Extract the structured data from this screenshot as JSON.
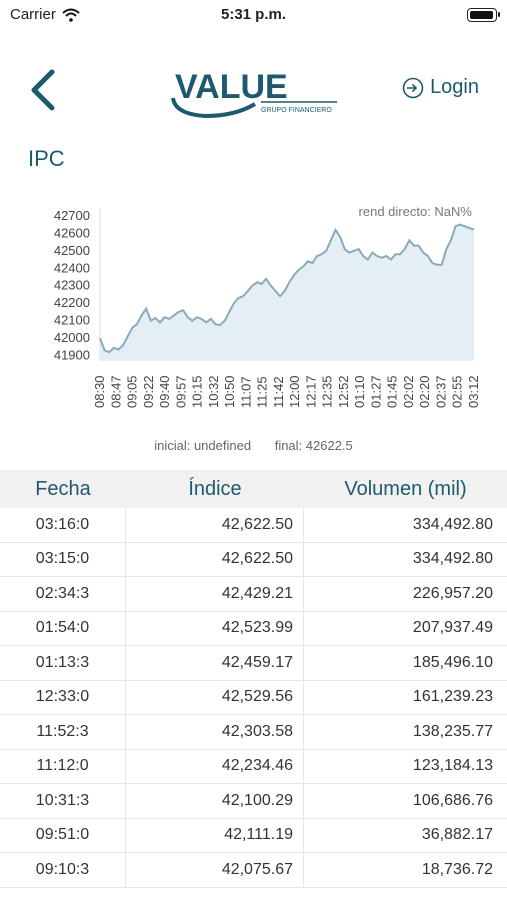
{
  "status": {
    "carrier": "Carrier",
    "time": "5:31 p.m.",
    "battery_level": 1.0
  },
  "nav": {
    "logo_text": "VALUE",
    "logo_subtext": "GRUPO FINANCIERO",
    "login_label": "Login"
  },
  "page_title": "IPC",
  "chart_data": {
    "type": "area",
    "annotation": "rend directo: NaN%",
    "x_ticks": [
      "08:30",
      "08:47",
      "09:05",
      "09:22",
      "09:40",
      "09:57",
      "10:15",
      "10:32",
      "10:50",
      "11:07",
      "11:25",
      "11:42",
      "12:00",
      "12:17",
      "12:35",
      "12:52",
      "01:10",
      "01:27",
      "01:45",
      "02:02",
      "02:20",
      "02:37",
      "02:55",
      "03:12"
    ],
    "y_ticks": [
      41900,
      42000,
      42100,
      42200,
      42300,
      42400,
      42500,
      42600,
      42700
    ],
    "ylim": [
      41875,
      42745
    ],
    "series": [
      {
        "values": [
          42000,
          41930,
          41920,
          41945,
          41935,
          41960,
          42010,
          42060,
          42080,
          42130,
          42170,
          42100,
          42115,
          42090,
          42120,
          42110,
          42130,
          42150,
          42160,
          42120,
          42100,
          42120,
          42110,
          42090,
          42110,
          42080,
          42075,
          42100,
          42150,
          42200,
          42230,
          42240,
          42270,
          42300,
          42320,
          42310,
          42340,
          42300,
          42270,
          42240,
          42270,
          42320,
          42360,
          42390,
          42410,
          42440,
          42430,
          42470,
          42480,
          42500,
          42560,
          42620,
          42580,
          42510,
          42490,
          42500,
          42510,
          42470,
          42450,
          42490,
          42470,
          42460,
          42470,
          42450,
          42480,
          42480,
          42510,
          42560,
          42530,
          42530,
          42490,
          42470,
          42430,
          42420,
          42420,
          42510,
          42560,
          42640,
          42650,
          42640,
          42630,
          42622
        ]
      }
    ],
    "color": "#8aaabb",
    "fill_color": "#e3eef5",
    "grid": false
  },
  "summary": {
    "inicial": "inicial: undefined",
    "final": "final: 42622.5"
  },
  "table": {
    "headers": [
      "Fecha",
      "Índice",
      "Volumen (mil)"
    ],
    "rows": [
      [
        "03:16:0",
        "42,622.50",
        "334,492.80"
      ],
      [
        "03:15:0",
        "42,622.50",
        "334,492.80"
      ],
      [
        "02:34:3",
        "42,429.21",
        "226,957.20"
      ],
      [
        "01:54:0",
        "42,523.99",
        "207,937.49"
      ],
      [
        "01:13:3",
        "42,459.17",
        "185,496.10"
      ],
      [
        "12:33:0",
        "42,529.56",
        "161,239.23"
      ],
      [
        "11:52:3",
        "42,303.58",
        "138,235.77"
      ],
      [
        "11:12:0",
        "42,234.46",
        "123,184.13"
      ],
      [
        "10:31:3",
        "42,100.29",
        "106,686.76"
      ],
      [
        "09:51:0",
        "42,111.19",
        "36,882.17"
      ],
      [
        "09:10:3",
        "42,075.67",
        "18,736.72"
      ]
    ]
  }
}
